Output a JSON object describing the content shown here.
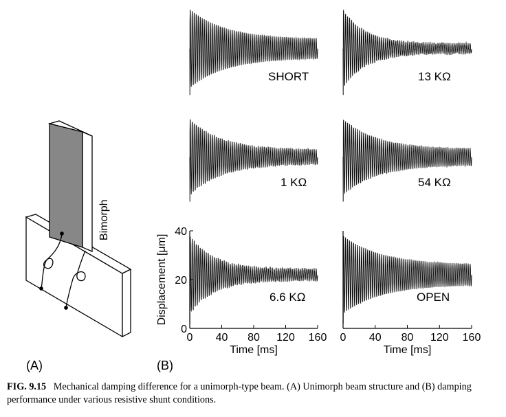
{
  "figure": {
    "panel_a_label": "(A)",
    "panel_b_label": "(B)",
    "bimorph_label": "Bimorph"
  },
  "caption": {
    "label": "FIG. 9.15",
    "text": "Mechanical damping difference for a unimorph-type beam. (A) Unimorph beam structure and (B) damping performance under various resistive shunt conditions."
  },
  "chart_data": [
    {
      "type": "line",
      "annotation": "SHORT",
      "xlim": [
        0,
        160
      ],
      "ylim": [
        0,
        40
      ],
      "x_unit": "ms",
      "amplitude_start": 17,
      "settled_amplitude": 4,
      "decay_ms": 45,
      "frequency_per_ms": 0.4,
      "noise": 0
    },
    {
      "type": "line",
      "annotation": "13 KΩ",
      "xlim": [
        0,
        160
      ],
      "ylim": [
        0,
        40
      ],
      "x_unit": "ms",
      "amplitude_start": 17,
      "settled_amplitude": 2,
      "decay_ms": 28,
      "frequency_per_ms": 0.4,
      "noise": 1.2
    },
    {
      "type": "line",
      "annotation": "1 KΩ",
      "xlim": [
        0,
        160
      ],
      "ylim": [
        0,
        40
      ],
      "x_unit": "ms",
      "amplitude_start": 17,
      "settled_amplitude": 3,
      "decay_ms": 40,
      "frequency_per_ms": 0.4,
      "noise": 0.8
    },
    {
      "type": "line",
      "annotation": "54 KΩ",
      "xlim": [
        0,
        160
      ],
      "ylim": [
        0,
        40
      ],
      "x_unit": "ms",
      "amplitude_start": 17,
      "settled_amplitude": 3.5,
      "decay_ms": 42,
      "frequency_per_ms": 0.4,
      "noise": 0.6
    },
    {
      "type": "line",
      "annotation": "6.6 KΩ",
      "xlim": [
        0,
        160
      ],
      "ylim": [
        0,
        40
      ],
      "x_unit": "ms",
      "xlabel": "Time [ms]",
      "ylabel": "Displacement [μm]",
      "xticks": [
        0,
        40,
        80,
        120,
        160
      ],
      "yticks": [
        0,
        20,
        40
      ],
      "amplitude_start": 16,
      "settled_amplitude": 2.2,
      "decay_ms": 30,
      "frequency_per_ms": 0.4,
      "noise": 1.0
    },
    {
      "type": "line",
      "annotation": "OPEN",
      "xlim": [
        0,
        160
      ],
      "ylim": [
        0,
        40
      ],
      "x_unit": "ms",
      "xlabel": "Time [ms]",
      "xticks": [
        0,
        40,
        80,
        120,
        160
      ],
      "amplitude_start": 16,
      "settled_amplitude": 4,
      "decay_ms": 48,
      "frequency_per_ms": 0.4,
      "noise": 0.2
    }
  ]
}
